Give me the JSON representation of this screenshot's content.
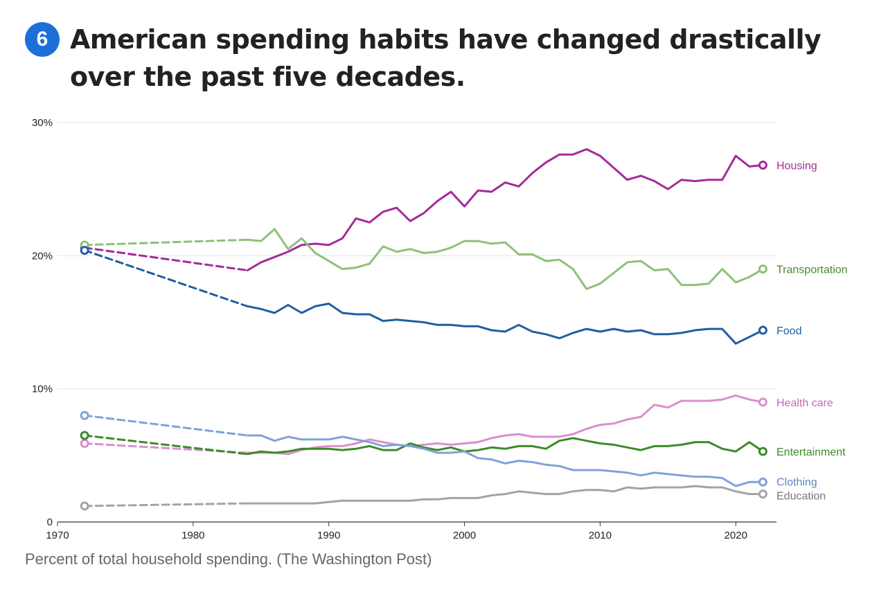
{
  "header": {
    "badge": "6",
    "title": "American spending habits have changed drastically over the past five decades."
  },
  "caption": "Percent of total household spending. (The Washington Post)",
  "chart_data": {
    "type": "line",
    "title": "American spending habits have changed drastically over the past five decades.",
    "xlabel": "",
    "ylabel": "",
    "xlim": [
      1970,
      2023
    ],
    "ylim": [
      0,
      30
    ],
    "x_ticks": [
      1970,
      1980,
      1990,
      2000,
      2010,
      2020
    ],
    "x_tick_labels": [
      "1970",
      "1980",
      "1990",
      "2000",
      "2010",
      "2020"
    ],
    "y_ticks": [
      0,
      10,
      20,
      30
    ],
    "y_tick_labels": [
      "0",
      "10%",
      "20%",
      "30%"
    ],
    "grid": "horizontal",
    "note": "Dashed segments connect 1972 to 1984",
    "series": [
      {
        "name": "Housing",
        "color": "#a52a9a",
        "dashed": [
          [
            1972,
            20.6
          ],
          [
            1984,
            18.9
          ]
        ],
        "values": [
          [
            1984,
            18.9
          ],
          [
            1985,
            19.5
          ],
          [
            1986,
            19.9
          ],
          [
            1987,
            20.3
          ],
          [
            1988,
            20.8
          ],
          [
            1989,
            20.9
          ],
          [
            1990,
            20.8
          ],
          [
            1991,
            21.3
          ],
          [
            1992,
            22.8
          ],
          [
            1993,
            22.5
          ],
          [
            1994,
            23.3
          ],
          [
            1995,
            23.6
          ],
          [
            1996,
            22.6
          ],
          [
            1997,
            23.2
          ],
          [
            1998,
            24.1
          ],
          [
            1999,
            24.8
          ],
          [
            2000,
            23.7
          ],
          [
            2001,
            24.9
          ],
          [
            2002,
            24.8
          ],
          [
            2003,
            25.5
          ],
          [
            2004,
            25.2
          ],
          [
            2005,
            26.2
          ],
          [
            2006,
            27.0
          ],
          [
            2007,
            27.6
          ],
          [
            2008,
            27.6
          ],
          [
            2009,
            28.0
          ],
          [
            2010,
            27.5
          ],
          [
            2011,
            26.6
          ],
          [
            2012,
            25.7
          ],
          [
            2013,
            26.0
          ],
          [
            2014,
            25.6
          ],
          [
            2015,
            25.0
          ],
          [
            2016,
            25.7
          ],
          [
            2017,
            25.6
          ],
          [
            2018,
            25.7
          ],
          [
            2019,
            25.7
          ],
          [
            2020,
            27.5
          ],
          [
            2021,
            26.7
          ],
          [
            2022,
            26.8
          ]
        ]
      },
      {
        "name": "Transportation",
        "color": "#8ec07a",
        "label_color": "#4a8a35",
        "dashed": [
          [
            1972,
            20.8
          ],
          [
            1984,
            21.2
          ]
        ],
        "values": [
          [
            1984,
            21.2
          ],
          [
            1985,
            21.1
          ],
          [
            1986,
            22.0
          ],
          [
            1987,
            20.5
          ],
          [
            1988,
            21.3
          ],
          [
            1989,
            20.2
          ],
          [
            1990,
            19.6
          ],
          [
            1991,
            19.0
          ],
          [
            1992,
            19.1
          ],
          [
            1993,
            19.4
          ],
          [
            1994,
            20.7
          ],
          [
            1995,
            20.3
          ],
          [
            1996,
            20.5
          ],
          [
            1997,
            20.2
          ],
          [
            1998,
            20.3
          ],
          [
            1999,
            20.6
          ],
          [
            2000,
            21.1
          ],
          [
            2001,
            21.1
          ],
          [
            2002,
            20.9
          ],
          [
            2003,
            21.0
          ],
          [
            2004,
            20.1
          ],
          [
            2005,
            20.1
          ],
          [
            2006,
            19.6
          ],
          [
            2007,
            19.7
          ],
          [
            2008,
            19.0
          ],
          [
            2009,
            17.5
          ],
          [
            2010,
            17.9
          ],
          [
            2011,
            18.7
          ],
          [
            2012,
            19.5
          ],
          [
            2013,
            19.6
          ],
          [
            2014,
            18.9
          ],
          [
            2015,
            19.0
          ],
          [
            2016,
            17.8
          ],
          [
            2017,
            17.8
          ],
          [
            2018,
            17.9
          ],
          [
            2019,
            19.0
          ],
          [
            2020,
            18.0
          ],
          [
            2021,
            18.4
          ],
          [
            2022,
            19.0
          ]
        ]
      },
      {
        "name": "Food",
        "color": "#1f5fa0",
        "dashed": [
          [
            1972,
            20.4
          ],
          [
            1984,
            16.2
          ]
        ],
        "values": [
          [
            1984,
            16.2
          ],
          [
            1985,
            16.0
          ],
          [
            1986,
            15.7
          ],
          [
            1987,
            16.3
          ],
          [
            1988,
            15.7
          ],
          [
            1989,
            16.2
          ],
          [
            1990,
            16.4
          ],
          [
            1991,
            15.7
          ],
          [
            1992,
            15.6
          ],
          [
            1993,
            15.6
          ],
          [
            1994,
            15.1
          ],
          [
            1995,
            15.2
          ],
          [
            1996,
            15.1
          ],
          [
            1997,
            15.0
          ],
          [
            1998,
            14.8
          ],
          [
            1999,
            14.8
          ],
          [
            2000,
            14.7
          ],
          [
            2001,
            14.7
          ],
          [
            2002,
            14.4
          ],
          [
            2003,
            14.3
          ],
          [
            2004,
            14.8
          ],
          [
            2005,
            14.3
          ],
          [
            2006,
            14.1
          ],
          [
            2007,
            13.8
          ],
          [
            2008,
            14.2
          ],
          [
            2009,
            14.5
          ],
          [
            2010,
            14.3
          ],
          [
            2011,
            14.5
          ],
          [
            2012,
            14.3
          ],
          [
            2013,
            14.4
          ],
          [
            2014,
            14.1
          ],
          [
            2015,
            14.1
          ],
          [
            2016,
            14.2
          ],
          [
            2017,
            14.4
          ],
          [
            2018,
            14.5
          ],
          [
            2019,
            14.5
          ],
          [
            2020,
            13.4
          ],
          [
            2021,
            13.9
          ],
          [
            2022,
            14.4
          ]
        ]
      },
      {
        "name": "Health care",
        "color": "#d98fd0",
        "label_color": "#c06bb8",
        "dashed": [
          [
            1972,
            5.9
          ],
          [
            1984,
            5.2
          ]
        ],
        "values": [
          [
            1984,
            5.2
          ],
          [
            1985,
            5.2
          ],
          [
            1986,
            5.2
          ],
          [
            1987,
            5.1
          ],
          [
            1988,
            5.4
          ],
          [
            1989,
            5.6
          ],
          [
            1990,
            5.7
          ],
          [
            1991,
            5.7
          ],
          [
            1992,
            5.9
          ],
          [
            1993,
            6.2
          ],
          [
            1994,
            6.0
          ],
          [
            1995,
            5.8
          ],
          [
            1996,
            5.7
          ],
          [
            1997,
            5.8
          ],
          [
            1998,
            5.9
          ],
          [
            1999,
            5.8
          ],
          [
            2000,
            5.9
          ],
          [
            2001,
            6.0
          ],
          [
            2002,
            6.3
          ],
          [
            2003,
            6.5
          ],
          [
            2004,
            6.6
          ],
          [
            2005,
            6.4
          ],
          [
            2006,
            6.4
          ],
          [
            2007,
            6.4
          ],
          [
            2008,
            6.6
          ],
          [
            2009,
            7.0
          ],
          [
            2010,
            7.3
          ],
          [
            2011,
            7.4
          ],
          [
            2012,
            7.7
          ],
          [
            2013,
            7.9
          ],
          [
            2014,
            8.8
          ],
          [
            2015,
            8.6
          ],
          [
            2016,
            9.1
          ],
          [
            2017,
            9.1
          ],
          [
            2018,
            9.1
          ],
          [
            2019,
            9.2
          ],
          [
            2020,
            9.5
          ],
          [
            2021,
            9.2
          ],
          [
            2022,
            9.0
          ]
        ]
      },
      {
        "name": "Entertainment",
        "color": "#3c8a2a",
        "dashed": [
          [
            1972,
            6.5
          ],
          [
            1984,
            5.1
          ]
        ],
        "values": [
          [
            1984,
            5.1
          ],
          [
            1985,
            5.3
          ],
          [
            1986,
            5.2
          ],
          [
            1987,
            5.3
          ],
          [
            1988,
            5.5
          ],
          [
            1989,
            5.5
          ],
          [
            1990,
            5.5
          ],
          [
            1991,
            5.4
          ],
          [
            1992,
            5.5
          ],
          [
            1993,
            5.7
          ],
          [
            1994,
            5.4
          ],
          [
            1995,
            5.4
          ],
          [
            1996,
            5.9
          ],
          [
            1997,
            5.6
          ],
          [
            1998,
            5.4
          ],
          [
            1999,
            5.6
          ],
          [
            2000,
            5.3
          ],
          [
            2001,
            5.4
          ],
          [
            2002,
            5.6
          ],
          [
            2003,
            5.5
          ],
          [
            2004,
            5.7
          ],
          [
            2005,
            5.7
          ],
          [
            2006,
            5.5
          ],
          [
            2007,
            6.1
          ],
          [
            2008,
            6.3
          ],
          [
            2009,
            6.1
          ],
          [
            2010,
            5.9
          ],
          [
            2011,
            5.8
          ],
          [
            2012,
            5.6
          ],
          [
            2013,
            5.4
          ],
          [
            2014,
            5.7
          ],
          [
            2015,
            5.7
          ],
          [
            2016,
            5.8
          ],
          [
            2017,
            6.0
          ],
          [
            2018,
            6.0
          ],
          [
            2019,
            5.5
          ],
          [
            2020,
            5.3
          ],
          [
            2021,
            6.0
          ],
          [
            2022,
            5.3
          ]
        ]
      },
      {
        "name": "Clothing",
        "color": "#7fa3d8",
        "label_color": "#5e86c6",
        "dashed": [
          [
            1972,
            8.0
          ],
          [
            1984,
            6.5
          ]
        ],
        "values": [
          [
            1984,
            6.5
          ],
          [
            1985,
            6.5
          ],
          [
            1986,
            6.1
          ],
          [
            1987,
            6.4
          ],
          [
            1988,
            6.2
          ],
          [
            1989,
            6.2
          ],
          [
            1990,
            6.2
          ],
          [
            1991,
            6.4
          ],
          [
            1992,
            6.2
          ],
          [
            1993,
            6.0
          ],
          [
            1994,
            5.7
          ],
          [
            1995,
            5.8
          ],
          [
            1996,
            5.7
          ],
          [
            1997,
            5.5
          ],
          [
            1998,
            5.2
          ],
          [
            1999,
            5.2
          ],
          [
            2000,
            5.3
          ],
          [
            2001,
            4.8
          ],
          [
            2002,
            4.7
          ],
          [
            2003,
            4.4
          ],
          [
            2004,
            4.6
          ],
          [
            2005,
            4.5
          ],
          [
            2006,
            4.3
          ],
          [
            2007,
            4.2
          ],
          [
            2008,
            3.9
          ],
          [
            2009,
            3.9
          ],
          [
            2010,
            3.9
          ],
          [
            2011,
            3.8
          ],
          [
            2012,
            3.7
          ],
          [
            2013,
            3.5
          ],
          [
            2014,
            3.7
          ],
          [
            2015,
            3.6
          ],
          [
            2016,
            3.5
          ],
          [
            2017,
            3.4
          ],
          [
            2018,
            3.4
          ],
          [
            2019,
            3.3
          ],
          [
            2020,
            2.7
          ],
          [
            2021,
            3.0
          ],
          [
            2022,
            3.0
          ]
        ]
      },
      {
        "name": "Education",
        "color": "#a3a3a3",
        "label_color": "#777777",
        "dashed": [
          [
            1972,
            1.2
          ],
          [
            1984,
            1.4
          ]
        ],
        "values": [
          [
            1984,
            1.4
          ],
          [
            1985,
            1.4
          ],
          [
            1986,
            1.4
          ],
          [
            1987,
            1.4
          ],
          [
            1988,
            1.4
          ],
          [
            1989,
            1.4
          ],
          [
            1990,
            1.5
          ],
          [
            1991,
            1.6
          ],
          [
            1992,
            1.6
          ],
          [
            1993,
            1.6
          ],
          [
            1994,
            1.6
          ],
          [
            1995,
            1.6
          ],
          [
            1996,
            1.6
          ],
          [
            1997,
            1.7
          ],
          [
            1998,
            1.7
          ],
          [
            1999,
            1.8
          ],
          [
            2000,
            1.8
          ],
          [
            2001,
            1.8
          ],
          [
            2002,
            2.0
          ],
          [
            2003,
            2.1
          ],
          [
            2004,
            2.3
          ],
          [
            2005,
            2.2
          ],
          [
            2006,
            2.1
          ],
          [
            2007,
            2.1
          ],
          [
            2008,
            2.3
          ],
          [
            2009,
            2.4
          ],
          [
            2010,
            2.4
          ],
          [
            2011,
            2.3
          ],
          [
            2012,
            2.6
          ],
          [
            2013,
            2.5
          ],
          [
            2014,
            2.6
          ],
          [
            2015,
            2.6
          ],
          [
            2016,
            2.6
          ],
          [
            2017,
            2.7
          ],
          [
            2018,
            2.6
          ],
          [
            2019,
            2.6
          ],
          [
            2020,
            2.3
          ],
          [
            2021,
            2.1
          ],
          [
            2022,
            2.1
          ]
        ]
      }
    ]
  }
}
